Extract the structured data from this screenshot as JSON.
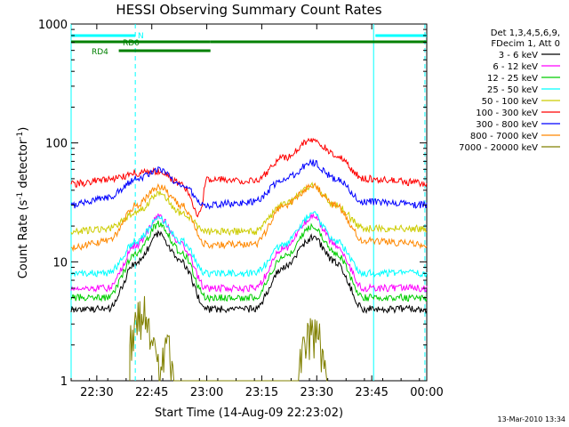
{
  "chart_data": {
    "type": "line",
    "title": "HESSI Observing Summary Count Rates",
    "xlabel": "Start Time (14-Aug-09 22:23:02)",
    "ylabel_main": "Count Rate (s",
    "ylabel_sup1": "-1",
    "ylabel_mid": " detector",
    "ylabel_sup2": "-1",
    "ylabel_end": ")",
    "date_stamp": "13-Mar-2010 13:34",
    "x_unit": "minutes after 22:23",
    "xlim": [
      0,
      97
    ],
    "ylim": [
      1,
      1000
    ],
    "y_scale": "log",
    "x_ticks": [
      {
        "value": 7,
        "label": "22:30"
      },
      {
        "value": 22,
        "label": "22:45"
      },
      {
        "value": 37,
        "label": "23:00"
      },
      {
        "value": 52,
        "label": "23:15"
      },
      {
        "value": 67,
        "label": "23:30"
      },
      {
        "value": 82,
        "label": "23:45"
      },
      {
        "value": 97,
        "label": "00:00"
      }
    ],
    "y_ticks": [
      {
        "value": 1,
        "label": "1"
      },
      {
        "value": 10,
        "label": "10"
      },
      {
        "value": 100,
        "label": "100"
      },
      {
        "value": 1000,
        "label": "1000"
      }
    ],
    "legend_header": [
      "Det 1,3,4,5,6,9,",
      "FDecim 1, Att 0"
    ],
    "legend_position": "right",
    "series": [
      {
        "name": "3 - 6 keV",
        "color": "#000000",
        "points": [
          [
            0,
            4
          ],
          [
            10,
            4
          ],
          [
            18,
            10
          ],
          [
            24,
            17
          ],
          [
            30,
            10
          ],
          [
            37,
            4
          ],
          [
            50,
            4
          ],
          [
            58,
            9
          ],
          [
            66,
            16
          ],
          [
            72,
            10
          ],
          [
            80,
            4
          ],
          [
            97,
            4
          ]
        ]
      },
      {
        "name": "6 - 12 keV",
        "color": "#ff00ff",
        "points": [
          [
            0,
            6
          ],
          [
            10,
            6
          ],
          [
            18,
            14
          ],
          [
            24,
            24
          ],
          [
            30,
            14
          ],
          [
            37,
            6
          ],
          [
            50,
            6
          ],
          [
            58,
            13
          ],
          [
            66,
            24
          ],
          [
            72,
            14
          ],
          [
            80,
            6
          ],
          [
            97,
            6
          ]
        ]
      },
      {
        "name": "12 - 25 keV",
        "color": "#00cc00",
        "points": [
          [
            0,
            5
          ],
          [
            10,
            5
          ],
          [
            18,
            12
          ],
          [
            24,
            21
          ],
          [
            30,
            12
          ],
          [
            37,
            5
          ],
          [
            50,
            5
          ],
          [
            58,
            11
          ],
          [
            66,
            20
          ],
          [
            72,
            12
          ],
          [
            80,
            5
          ],
          [
            97,
            5
          ]
        ]
      },
      {
        "name": "25 - 50 keV",
        "color": "#00ffff",
        "points": [
          [
            0,
            8
          ],
          [
            10,
            8
          ],
          [
            18,
            15
          ],
          [
            24,
            23
          ],
          [
            30,
            15
          ],
          [
            37,
            8
          ],
          [
            50,
            8
          ],
          [
            58,
            14
          ],
          [
            66,
            25
          ],
          [
            72,
            15
          ],
          [
            80,
            8
          ],
          [
            97,
            8
          ]
        ]
      },
      {
        "name": "50 - 100 keV",
        "color": "#cccc00",
        "points": [
          [
            0,
            18
          ],
          [
            10,
            19
          ],
          [
            18,
            26
          ],
          [
            24,
            37
          ],
          [
            30,
            26
          ],
          [
            37,
            18
          ],
          [
            50,
            18
          ],
          [
            58,
            30
          ],
          [
            66,
            44
          ],
          [
            72,
            30
          ],
          [
            80,
            19
          ],
          [
            97,
            19
          ]
        ]
      },
      {
        "name": "100 - 300 keV",
        "color": "#ff0000",
        "points": [
          [
            0,
            45
          ],
          [
            12,
            50
          ],
          [
            18,
            56
          ],
          [
            24,
            58
          ],
          [
            30,
            45
          ],
          [
            35,
            25
          ],
          [
            37,
            50
          ],
          [
            50,
            48
          ],
          [
            58,
            75
          ],
          [
            66,
            108
          ],
          [
            72,
            80
          ],
          [
            80,
            50
          ],
          [
            97,
            46
          ]
        ]
      },
      {
        "name": "300 - 800 keV",
        "color": "#0000ff",
        "points": [
          [
            0,
            30
          ],
          [
            10,
            35
          ],
          [
            18,
            50
          ],
          [
            24,
            60
          ],
          [
            30,
            45
          ],
          [
            37,
            30
          ],
          [
            50,
            32
          ],
          [
            58,
            50
          ],
          [
            66,
            68
          ],
          [
            72,
            50
          ],
          [
            80,
            32
          ],
          [
            97,
            30
          ]
        ]
      },
      {
        "name": "800 - 7000 keV",
        "color": "#ff8800",
        "points": [
          [
            0,
            13
          ],
          [
            10,
            15
          ],
          [
            18,
            30
          ],
          [
            24,
            43
          ],
          [
            30,
            30
          ],
          [
            37,
            14
          ],
          [
            50,
            14
          ],
          [
            58,
            30
          ],
          [
            66,
            43
          ],
          [
            72,
            30
          ],
          [
            80,
            15
          ],
          [
            97,
            14
          ]
        ]
      },
      {
        "name": "7000 - 20000 keV",
        "color": "#808000",
        "points": [
          [
            16,
            1
          ],
          [
            16,
            2
          ],
          [
            18,
            3
          ],
          [
            20,
            3.5
          ],
          [
            22,
            2
          ],
          [
            24,
            1
          ],
          [
            26,
            2
          ],
          [
            28,
            1
          ],
          [
            32,
            1
          ],
          [
            62,
            1
          ],
          [
            64,
            2
          ],
          [
            66,
            2.5
          ],
          [
            68,
            2
          ],
          [
            70,
            1
          ]
        ]
      }
    ],
    "status_bars": [
      {
        "label": "N",
        "color": "#00ffff",
        "segments": [
          [
            0,
            17.5
          ],
          [
            83,
            97
          ]
        ]
      },
      {
        "label": "RD0",
        "color": "#008000",
        "segments": [
          [
            0,
            38
          ],
          [
            38,
            97
          ]
        ]
      },
      {
        "label": "RD4",
        "color": "#008000",
        "segments": [
          [
            13,
            38
          ]
        ]
      }
    ],
    "vertical_markers": [
      {
        "value": 0,
        "style": "solid",
        "color": "#00ffff"
      },
      {
        "value": 17.5,
        "style": "dashed",
        "color": "#00ffff"
      },
      {
        "value": 82.5,
        "style": "solid",
        "color": "#00ffff"
      },
      {
        "value": 96.5,
        "style": "dashed",
        "color": "#00ffff"
      }
    ]
  }
}
